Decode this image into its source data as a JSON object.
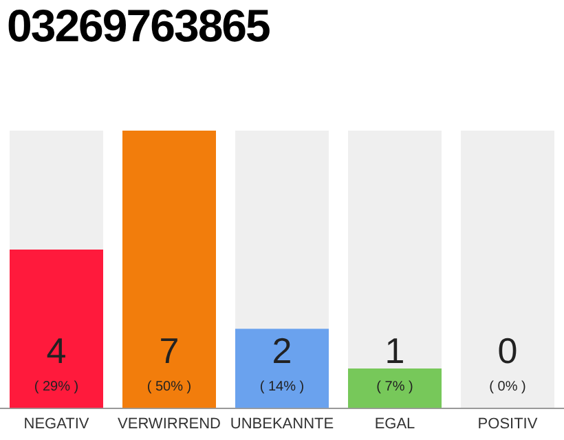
{
  "chart_data": {
    "type": "bar",
    "title": "03269763865",
    "categories": [
      "NEGATIV",
      "VERWIRREND",
      "UNBEKANNTE",
      "EGAL",
      "POSITIV"
    ],
    "values": [
      4,
      7,
      2,
      1,
      0
    ],
    "colors": [
      "#ff1a3c",
      "#f27d0c",
      "#6aa2ee",
      "#77c85a",
      "#cccccc"
    ],
    "data_labels": true,
    "annotations": [
      "( 29% )",
      "( 50% )",
      "( 14% )",
      "( 7% )",
      "( 0% )"
    ],
    "grid": false,
    "legend": false
  }
}
